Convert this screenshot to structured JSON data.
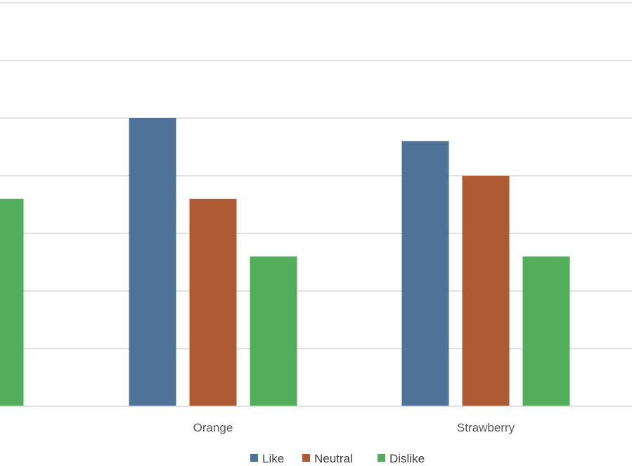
{
  "chart_data": {
    "type": "bar",
    "title": "",
    "xlabel": "",
    "ylabel": "",
    "categories": [
      "",
      "Orange",
      "Strawberry"
    ],
    "series": [
      {
        "name": "Like",
        "color": "#4e7298",
        "values": [
          null,
          10,
          9.2
        ]
      },
      {
        "name": "Neutral",
        "color": "#ae5b35",
        "values": [
          null,
          7.2,
          8
        ]
      },
      {
        "name": "Dislike",
        "color": "#53ae5b",
        "values": [
          7.2,
          5.2,
          5.2
        ]
      }
    ],
    "ylim": [
      0,
      14
    ],
    "grid": true,
    "legend": "bottom"
  }
}
